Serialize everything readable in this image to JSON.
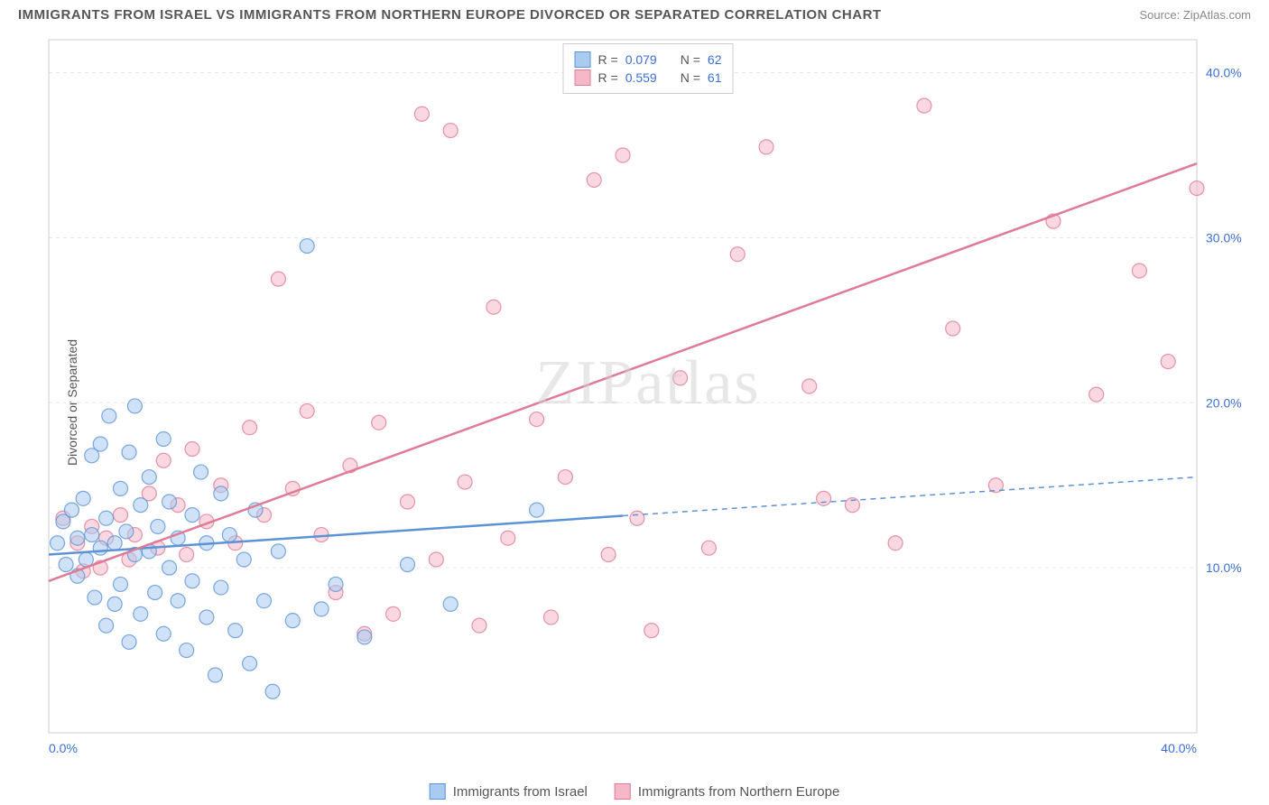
{
  "title": "IMMIGRANTS FROM ISRAEL VS IMMIGRANTS FROM NORTHERN EUROPE DIVORCED OR SEPARATED CORRELATION CHART",
  "source": "Source: ZipAtlas.com",
  "watermark": "ZIPatlas",
  "yaxis_label": "Divorced or Separated",
  "chart": {
    "type": "scatter-with-regression",
    "xlim": [
      0,
      40
    ],
    "ylim": [
      0,
      42
    ],
    "xtick_labels": [
      "0.0%",
      "40.0%"
    ],
    "xtick_pos": [
      0,
      40
    ],
    "ytick_labels": [
      "10.0%",
      "20.0%",
      "30.0%",
      "40.0%"
    ],
    "ytick_pos": [
      10,
      20,
      30,
      40
    ],
    "grid_color": "#e6e6e6",
    "background_color": "#ffffff",
    "axis_color": "#cccccc",
    "marker_radius": 8,
    "marker_opacity": 0.55,
    "line_width": 2.5,
    "series": [
      {
        "name": "Immigrants from Israel",
        "color": "#6fa8e8",
        "fill": "#a9cbf0",
        "stroke": "#5b93d6",
        "r_label": "R =",
        "r_value": "0.079",
        "n_label": "N =",
        "n_value": "62",
        "regression": {
          "x1": 0,
          "y1": 10.8,
          "x2": 40,
          "y2": 15.5,
          "solid_until_x": 20
        },
        "points": [
          [
            0.3,
            11.5
          ],
          [
            0.5,
            12.8
          ],
          [
            0.6,
            10.2
          ],
          [
            0.8,
            13.5
          ],
          [
            1.0,
            11.8
          ],
          [
            1.0,
            9.5
          ],
          [
            1.2,
            14.2
          ],
          [
            1.3,
            10.5
          ],
          [
            1.5,
            12.0
          ],
          [
            1.5,
            16.8
          ],
          [
            1.6,
            8.2
          ],
          [
            1.8,
            11.2
          ],
          [
            1.8,
            17.5
          ],
          [
            2.0,
            13.0
          ],
          [
            2.0,
            6.5
          ],
          [
            2.1,
            19.2
          ],
          [
            2.3,
            11.5
          ],
          [
            2.3,
            7.8
          ],
          [
            2.5,
            14.8
          ],
          [
            2.5,
            9.0
          ],
          [
            2.7,
            12.2
          ],
          [
            2.8,
            17.0
          ],
          [
            2.8,
            5.5
          ],
          [
            3.0,
            10.8
          ],
          [
            3.0,
            19.8
          ],
          [
            3.2,
            13.8
          ],
          [
            3.2,
            7.2
          ],
          [
            3.5,
            11.0
          ],
          [
            3.5,
            15.5
          ],
          [
            3.7,
            8.5
          ],
          [
            3.8,
            12.5
          ],
          [
            4.0,
            6.0
          ],
          [
            4.0,
            17.8
          ],
          [
            4.2,
            10.0
          ],
          [
            4.2,
            14.0
          ],
          [
            4.5,
            8.0
          ],
          [
            4.5,
            11.8
          ],
          [
            4.8,
            5.0
          ],
          [
            5.0,
            13.2
          ],
          [
            5.0,
            9.2
          ],
          [
            5.3,
            15.8
          ],
          [
            5.5,
            7.0
          ],
          [
            5.5,
            11.5
          ],
          [
            5.8,
            3.5
          ],
          [
            6.0,
            14.5
          ],
          [
            6.0,
            8.8
          ],
          [
            6.3,
            12.0
          ],
          [
            6.5,
            6.2
          ],
          [
            6.8,
            10.5
          ],
          [
            7.0,
            4.2
          ],
          [
            7.2,
            13.5
          ],
          [
            7.5,
            8.0
          ],
          [
            7.8,
            2.5
          ],
          [
            8.0,
            11.0
          ],
          [
            8.5,
            6.8
          ],
          [
            9.0,
            29.5
          ],
          [
            9.5,
            7.5
          ],
          [
            10.0,
            9.0
          ],
          [
            11.0,
            5.8
          ],
          [
            12.5,
            10.2
          ],
          [
            14.0,
            7.8
          ],
          [
            17.0,
            13.5
          ]
        ]
      },
      {
        "name": "Immigrants from Northern Europe",
        "color": "#e88ba5",
        "fill": "#f4b8c8",
        "stroke": "#e07a96",
        "r_label": "R =",
        "r_value": "0.559",
        "n_label": "N =",
        "n_value": "61",
        "regression": {
          "x1": 0,
          "y1": 9.2,
          "x2": 40,
          "y2": 34.5,
          "solid_until_x": 40
        },
        "points": [
          [
            0.5,
            13.0
          ],
          [
            1.0,
            11.5
          ],
          [
            1.2,
            9.8
          ],
          [
            1.5,
            12.5
          ],
          [
            1.8,
            10.0
          ],
          [
            2.0,
            11.8
          ],
          [
            2.5,
            13.2
          ],
          [
            2.8,
            10.5
          ],
          [
            3.0,
            12.0
          ],
          [
            3.5,
            14.5
          ],
          [
            3.8,
            11.2
          ],
          [
            4.0,
            16.5
          ],
          [
            4.5,
            13.8
          ],
          [
            4.8,
            10.8
          ],
          [
            5.0,
            17.2
          ],
          [
            5.5,
            12.8
          ],
          [
            6.0,
            15.0
          ],
          [
            6.5,
            11.5
          ],
          [
            7.0,
            18.5
          ],
          [
            7.5,
            13.2
          ],
          [
            8.0,
            27.5
          ],
          [
            8.5,
            14.8
          ],
          [
            9.0,
            19.5
          ],
          [
            9.5,
            12.0
          ],
          [
            10.0,
            8.5
          ],
          [
            10.5,
            16.2
          ],
          [
            11.0,
            6.0
          ],
          [
            11.5,
            18.8
          ],
          [
            12.0,
            7.2
          ],
          [
            12.5,
            14.0
          ],
          [
            13.0,
            37.5
          ],
          [
            13.5,
            10.5
          ],
          [
            14.0,
            36.5
          ],
          [
            14.5,
            15.2
          ],
          [
            15.0,
            6.5
          ],
          [
            15.5,
            25.8
          ],
          [
            16.0,
            11.8
          ],
          [
            17.0,
            19.0
          ],
          [
            17.5,
            7.0
          ],
          [
            18.0,
            15.5
          ],
          [
            19.0,
            33.5
          ],
          [
            19.5,
            10.8
          ],
          [
            20.0,
            35.0
          ],
          [
            20.5,
            13.0
          ],
          [
            21.0,
            6.2
          ],
          [
            22.0,
            21.5
          ],
          [
            23.0,
            11.2
          ],
          [
            24.0,
            29.0
          ],
          [
            25.0,
            35.5
          ],
          [
            26.5,
            21.0
          ],
          [
            27.0,
            14.2
          ],
          [
            28.0,
            13.8
          ],
          [
            29.5,
            11.5
          ],
          [
            30.5,
            38.0
          ],
          [
            31.5,
            24.5
          ],
          [
            33.0,
            15.0
          ],
          [
            35.0,
            31.0
          ],
          [
            36.5,
            20.5
          ],
          [
            38.0,
            28.0
          ],
          [
            39.0,
            22.5
          ],
          [
            40.0,
            33.0
          ]
        ]
      }
    ]
  }
}
